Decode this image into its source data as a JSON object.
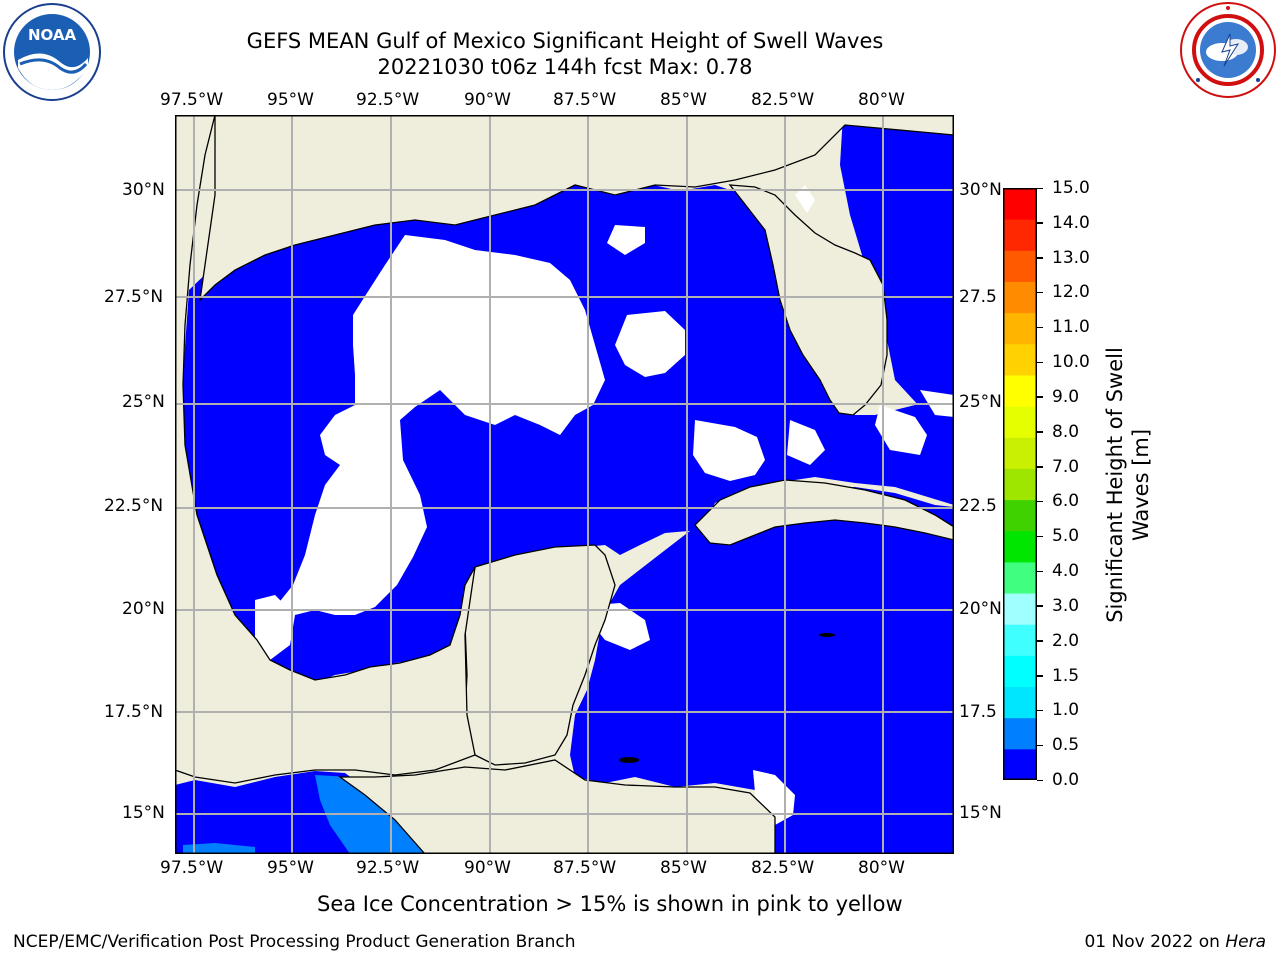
{
  "header": {
    "title_line1": "GEFS MEAN Gulf of Mexico Significant Height of Swell Waves",
    "title_line2": "20221030 t06z 144h fcst   Max: 0.78"
  },
  "logos": {
    "left": {
      "icon": "noaa-logo",
      "text": "NOAA",
      "ring_text": "NATIONAL OCEANIC AND ATMOSPHERIC ADMINISTRATION · U.S. DEPARTMENT OF COMMERCE"
    },
    "right": {
      "icon": "nws-logo",
      "ring_text": "NATIONAL WEATHER SERVICE"
    }
  },
  "map": {
    "lon_labels": [
      "97.5°W",
      "95°W",
      "92.5°W",
      "90°W",
      "87.5°W",
      "85°W",
      "82.5°W",
      "80°W"
    ],
    "lat_labels_left": [
      "30°N",
      "27.5°N",
      "25°N",
      "22.5°N",
      "20°N",
      "17.5°N",
      "15°N"
    ],
    "lat_labels_right": [
      "30°N",
      "27.5",
      "25°N",
      "22.5",
      "20°N",
      "17.5",
      "15°N"
    ],
    "colors": {
      "land": "#efeedd",
      "ocean_low": "#0000ff",
      "ocean_mid": "#0080ff",
      "gap": "#ffffff",
      "grid": "#b0b0b0"
    }
  },
  "colorbar": {
    "label_line1": "Significant Height of Swell",
    "label_line2": "Waves [m]",
    "ticks": [
      "15.0",
      "14.0",
      "13.0",
      "12.0",
      "11.0",
      "10.0",
      "9.0",
      "8.0",
      "7.0",
      "6.0",
      "5.0",
      "4.0",
      "3.0",
      "2.0",
      "1.5",
      "1.0",
      "0.5",
      "0.0"
    ],
    "colors": [
      "#0000ff",
      "#0080ff",
      "#00e6ff",
      "#00ffff",
      "#40ffff",
      "#a0ffff",
      "#40ff80",
      "#00e600",
      "#40d200",
      "#9ee600",
      "#c8f000",
      "#e6ff00",
      "#ffff00",
      "#ffd200",
      "#ffb400",
      "#ff8c00",
      "#ff5a00",
      "#ff2800",
      "#ff0000"
    ]
  },
  "caption": "Sea Ice Concentration > 15% is shown in pink to yellow",
  "footer": {
    "left": "NCEP/EMC/Verification Post Processing Product Generation Branch",
    "date": "01 Nov 2022 on ",
    "machine": "Hera"
  }
}
